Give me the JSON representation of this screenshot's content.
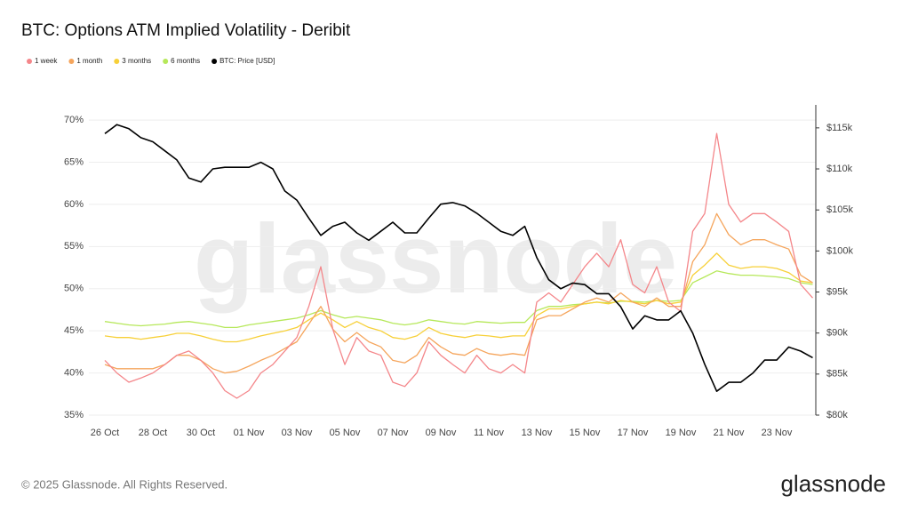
{
  "chart_data": {
    "type": "line",
    "title": "BTC: Options ATM Implied Volatility - Deribit",
    "categories": [
      "26 Oct",
      null,
      null,
      null,
      "28 Oct",
      null,
      null,
      null,
      "30 Oct",
      null,
      null,
      null,
      "01 Nov",
      null,
      null,
      null,
      "03 Nov",
      null,
      null,
      null,
      "05 Nov",
      null,
      null,
      null,
      "07 Nov",
      null,
      null,
      null,
      "09 Nov",
      null,
      null,
      null,
      "11 Nov",
      null,
      null,
      null,
      "13 Nov",
      null,
      null,
      null,
      "15 Nov",
      null,
      null,
      null,
      "17 Nov",
      null,
      null,
      null,
      "19 Nov",
      null,
      null,
      null,
      "21 Nov",
      null,
      null,
      null,
      "23 Nov",
      null,
      null,
      null
    ],
    "series": [
      {
        "name": "1 week",
        "color": "#f4868a",
        "values": [
          41.5,
          40,
          38.9,
          39.4,
          40,
          41,
          42.1,
          42.6,
          41.5,
          40,
          37.9,
          37,
          37.9,
          40,
          41,
          42.6,
          44.2,
          47.9,
          52.6,
          45.2,
          41,
          44.2,
          42.6,
          42.1,
          38.9,
          38.4,
          40,
          43.7,
          42.1,
          41,
          40,
          42.1,
          40.5,
          40,
          41,
          40,
          48.4,
          49.5,
          48.4,
          50.5,
          52.6,
          54.2,
          52.6,
          55.8,
          50.5,
          49.5,
          52.6,
          48.4,
          47.3,
          56.8,
          58.9,
          68.4,
          60,
          57.9,
          58.9,
          58.9,
          57.9,
          56.8,
          50.5,
          48.9
        ]
      },
      {
        "name": "1 month",
        "color": "#f5a55c",
        "values": [
          41,
          40.5,
          40.5,
          40.5,
          40.5,
          41,
          42.1,
          42.1,
          41.5,
          40.5,
          40,
          40.2,
          40.8,
          41.5,
          42.1,
          42.9,
          43.7,
          45.8,
          47.9,
          45.2,
          43.7,
          44.8,
          43.7,
          43.1,
          41.5,
          41.2,
          42.1,
          44.2,
          43.1,
          42.3,
          42.1,
          42.9,
          42.3,
          42.1,
          42.3,
          42.1,
          46.3,
          46.8,
          46.8,
          47.6,
          48.4,
          48.9,
          48.4,
          49.5,
          48.4,
          47.9,
          48.9,
          47.9,
          47.9,
          53.2,
          55.2,
          58.9,
          56.4,
          55.2,
          55.8,
          55.8,
          55.2,
          54.7,
          51.6,
          50.7
        ]
      },
      {
        "name": "3 months",
        "color": "#f7d038",
        "values": [
          44.4,
          44.2,
          44.2,
          44,
          44.2,
          44.4,
          44.7,
          44.7,
          44.4,
          44,
          43.7,
          43.7,
          44,
          44.4,
          44.7,
          45,
          45.4,
          46.3,
          47.1,
          46.3,
          45.4,
          46.1,
          45.4,
          45,
          44.2,
          44,
          44.4,
          45.4,
          44.7,
          44.4,
          44.2,
          44.5,
          44.4,
          44.2,
          44.4,
          44.4,
          46.8,
          47.6,
          47.6,
          47.9,
          48.2,
          48.4,
          48.2,
          48.6,
          48.4,
          48.2,
          48.6,
          48.2,
          48.4,
          51.6,
          52.8,
          54.2,
          52.8,
          52.4,
          52.6,
          52.6,
          52.4,
          51.9,
          50.9,
          50.7
        ]
      },
      {
        "name": "6 months",
        "color": "#b6e85a",
        "values": [
          46.1,
          45.9,
          45.7,
          45.6,
          45.7,
          45.8,
          46,
          46.1,
          45.9,
          45.7,
          45.4,
          45.4,
          45.7,
          45.9,
          46.1,
          46.3,
          46.5,
          46.9,
          47.4,
          46.9,
          46.5,
          46.7,
          46.5,
          46.3,
          45.9,
          45.7,
          45.9,
          46.3,
          46.1,
          45.9,
          45.8,
          46.1,
          46,
          45.9,
          46,
          46,
          47.4,
          47.9,
          47.9,
          48.1,
          48.2,
          48.4,
          48.3,
          48.5,
          48.5,
          48.4,
          48.6,
          48.5,
          48.6,
          50.7,
          51.4,
          52.1,
          51.8,
          51.6,
          51.6,
          51.5,
          51.4,
          51.2,
          50.7,
          50.5
        ]
      },
      {
        "name": "BTC: Price [USD]",
        "color": "#000000",
        "axis": "y2",
        "values": [
          114300,
          115400,
          114900,
          113800,
          113300,
          112200,
          111100,
          108900,
          108400,
          110000,
          110200,
          110200,
          110200,
          110800,
          110000,
          107300,
          106200,
          104000,
          101900,
          103000,
          103500,
          102200,
          101300,
          102400,
          103500,
          102200,
          102200,
          104000,
          105700,
          105900,
          105500,
          104600,
          103500,
          102400,
          101900,
          103000,
          99200,
          96500,
          95400,
          96100,
          95900,
          94800,
          94800,
          93200,
          90500,
          92100,
          91600,
          91600,
          92700,
          90000,
          86200,
          82900,
          84000,
          84000,
          85100,
          86700,
          86700,
          88300,
          87800,
          87000
        ]
      }
    ],
    "ylim": [
      35,
      71.8
    ],
    "yticks": [
      {
        "value": 35,
        "label": "35%"
      },
      {
        "value": 40,
        "label": "40%"
      },
      {
        "value": 45,
        "label": "45%"
      },
      {
        "value": 50,
        "label": "50%"
      },
      {
        "value": 55,
        "label": "55%"
      },
      {
        "value": 60,
        "label": "60%"
      },
      {
        "value": 65,
        "label": "65%"
      },
      {
        "value": 70,
        "label": "70%"
      }
    ],
    "y2lim": [
      80000,
      117800
    ],
    "y2ticks": [
      {
        "value": 80000,
        "label": "$80k"
      },
      {
        "value": 85000,
        "label": "$85k"
      },
      {
        "value": 90000,
        "label": "$90k"
      },
      {
        "value": 95000,
        "label": "$95k"
      },
      {
        "value": 100000,
        "label": "$100k"
      },
      {
        "value": 105000,
        "label": "$105k"
      },
      {
        "value": 110000,
        "label": "$110k"
      },
      {
        "value": 115000,
        "label": "$115k"
      }
    ],
    "grid": true,
    "legend": "top-left"
  },
  "watermark": "glassnode",
  "footer": "© 2025 Glassnode. All Rights Reserved.",
  "logo": "glassnode"
}
